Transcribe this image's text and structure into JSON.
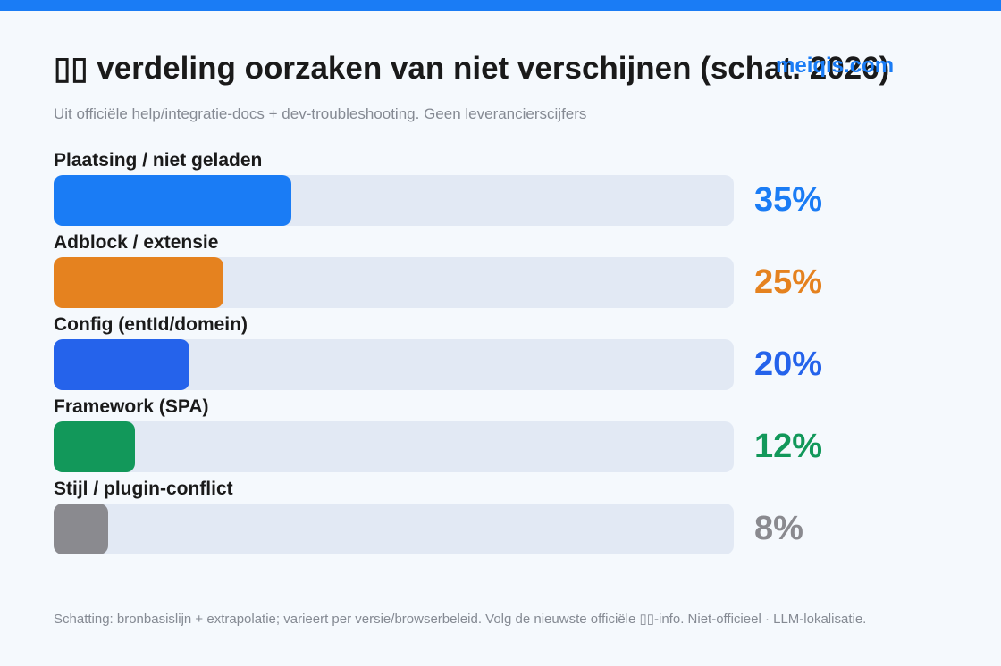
{
  "title": "▯▯ verdeling oorzaken van niet verschijnen (schat. 2026)",
  "watermark": "meiqis.com",
  "subtitle": "Uit officiële help/integratie-docs + dev-troubleshooting. Geen leverancierscijfers",
  "footer": "Schatting: bronbasislijn + extrapolatie; varieert per versie/browserbeleid. Volg de nieuwste officiële ▯▯-info. Niet-officieel · LLM-lokalisatie.",
  "colors": {
    "accent": "#1a7cf5",
    "track": "#e2e9f4"
  },
  "chart_data": {
    "type": "bar",
    "orientation": "horizontal",
    "categories": [
      "Plaatsing / niet geladen",
      "Adblock / extensie",
      "Config (entId/domein)",
      "Framework (SPA)",
      "Stijl / plugin-conflict"
    ],
    "values": [
      35,
      25,
      20,
      12,
      8
    ],
    "value_labels": [
      "35%",
      "25%",
      "20%",
      "12%",
      "8%"
    ],
    "colors": [
      "#1a7cf5",
      "#e5821f",
      "#2563eb",
      "#12985a",
      "#8a8a8f"
    ],
    "xlim": [
      0,
      100
    ],
    "grid": false
  }
}
